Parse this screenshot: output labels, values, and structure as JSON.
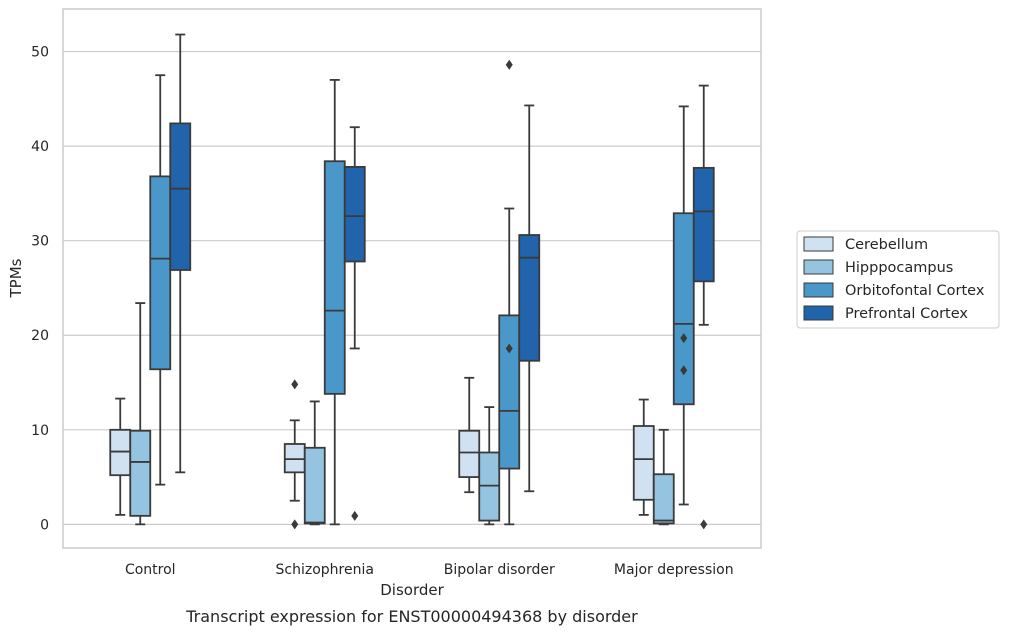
{
  "chart_data": {
    "type": "box",
    "title": "",
    "caption": "Transcript expression for ENST00000494368 by disorder",
    "xlabel": "Disorder",
    "ylabel": "TPMs",
    "ylim": [
      -2.5,
      54.5
    ],
    "yticks": [
      0,
      10,
      20,
      30,
      40,
      50
    ],
    "grid": "horizontal",
    "legend_position": "right",
    "categories": [
      "Control",
      "Schizophrenia",
      "Bipolar disorder",
      "Major depression"
    ],
    "series": [
      {
        "name": "Cerebellum",
        "color": "#d0e1f2",
        "boxes": [
          {
            "whisker_low": 1.0,
            "q1": 5.2,
            "median": 7.7,
            "q3": 10.0,
            "whisker_high": 13.3,
            "outliers": []
          },
          {
            "whisker_low": 2.5,
            "q1": 5.5,
            "median": 6.9,
            "q3": 8.5,
            "whisker_high": 11.0,
            "outliers": [
              0.0,
              14.8
            ]
          },
          {
            "whisker_low": 3.4,
            "q1": 5.0,
            "median": 7.6,
            "q3": 9.9,
            "whisker_high": 15.5,
            "outliers": []
          },
          {
            "whisker_low": 1.0,
            "q1": 2.6,
            "median": 6.9,
            "q3": 10.4,
            "whisker_high": 13.2,
            "outliers": []
          }
        ]
      },
      {
        "name": "Hipppocampus",
        "color": "#94c4df",
        "boxes": [
          {
            "whisker_low": 0.0,
            "q1": 0.9,
            "median": 6.6,
            "q3": 9.9,
            "whisker_high": 23.4,
            "outliers": []
          },
          {
            "whisker_low": 0.0,
            "q1": 0.1,
            "median": 0.2,
            "q3": 8.1,
            "whisker_high": 13.0,
            "outliers": []
          },
          {
            "whisker_low": 0.0,
            "q1": 0.4,
            "median": 4.1,
            "q3": 7.6,
            "whisker_high": 12.4,
            "outliers": []
          },
          {
            "whisker_low": 0.0,
            "q1": 0.1,
            "median": 0.4,
            "q3": 5.3,
            "whisker_high": 10.0,
            "outliers": []
          }
        ]
      },
      {
        "name": "Orbitofontal Cortex",
        "color": "#4a98c9",
        "boxes": [
          {
            "whisker_low": 4.2,
            "q1": 16.4,
            "median": 28.1,
            "q3": 36.8,
            "whisker_high": 47.5,
            "outliers": []
          },
          {
            "whisker_low": 0.0,
            "q1": 13.8,
            "median": 22.6,
            "q3": 38.4,
            "whisker_high": 47.0,
            "outliers": []
          },
          {
            "whisker_low": 0.0,
            "q1": 5.9,
            "median": 12.0,
            "q3": 22.1,
            "whisker_high": 33.4,
            "outliers": [
              18.6,
              48.6
            ]
          },
          {
            "whisker_low": 2.1,
            "q1": 12.7,
            "median": 21.2,
            "q3": 32.9,
            "whisker_high": 44.2,
            "outliers": [
              16.3,
              19.7
            ]
          }
        ]
      },
      {
        "name": "Prefrontal Cortex",
        "color": "#2164ab",
        "boxes": [
          {
            "whisker_low": 5.5,
            "q1": 26.9,
            "median": 35.5,
            "q3": 42.4,
            "whisker_high": 51.8,
            "outliers": []
          },
          {
            "whisker_low": 18.6,
            "q1": 27.8,
            "median": 32.6,
            "q3": 37.8,
            "whisker_high": 42.0,
            "outliers": [
              0.9
            ]
          },
          {
            "whisker_low": 3.5,
            "q1": 17.3,
            "median": 28.2,
            "q3": 30.6,
            "whisker_high": 44.3,
            "outliers": []
          },
          {
            "whisker_low": 21.1,
            "q1": 25.7,
            "median": 33.1,
            "q3": 37.7,
            "whisker_high": 46.4,
            "outliers": [
              0.0
            ]
          }
        ]
      }
    ]
  }
}
